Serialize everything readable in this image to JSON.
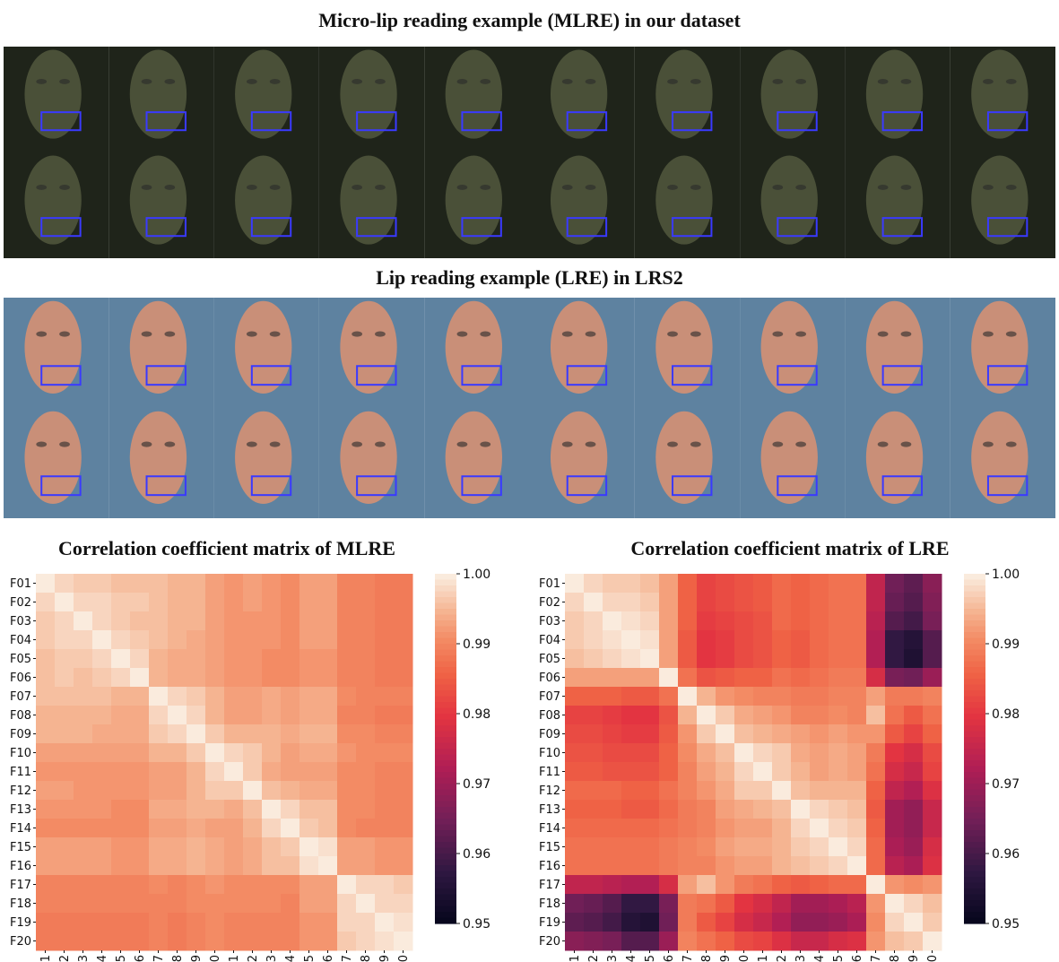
{
  "titles": {
    "mlre": "Micro-lip reading example (MLRE) in our dataset",
    "lre": "Lip reading example (LRE) in LRS2"
  },
  "colors": {
    "mlre_bg": "#1f241a",
    "mlre_face": "#4a5038",
    "lre_bg": "#5e82a0",
    "lre_face": "#c98f78",
    "roi_box": "#3a3aff"
  },
  "icons": {
    "face_frame": "face-frame-icon"
  },
  "frames_per_row": 10,
  "rows_per_example": 2,
  "chart_data": [
    {
      "type": "heatmap",
      "title": "Correlation coefficient matrix of MLRE",
      "labels": [
        "F01",
        "F02",
        "F03",
        "F04",
        "F05",
        "F06",
        "F07",
        "F08",
        "F09",
        "F10",
        "F11",
        "F12",
        "F13",
        "F14",
        "F15",
        "F16",
        "F17",
        "F18",
        "F19",
        "F20"
      ],
      "colorbar": {
        "min": 0.95,
        "max": 1.0,
        "ticks": [
          "0.95",
          "0.96",
          "0.97",
          "0.98",
          "0.99",
          "1.00"
        ]
      },
      "values": [
        [
          1.0,
          0.998,
          0.997,
          0.997,
          0.996,
          0.996,
          0.996,
          0.995,
          0.995,
          0.993,
          0.992,
          0.993,
          0.992,
          0.991,
          0.993,
          0.993,
          0.99,
          0.99,
          0.989,
          0.989
        ],
        [
          0.998,
          1.0,
          0.998,
          0.998,
          0.997,
          0.997,
          0.996,
          0.995,
          0.995,
          0.993,
          0.992,
          0.993,
          0.992,
          0.991,
          0.993,
          0.993,
          0.99,
          0.99,
          0.989,
          0.989
        ],
        [
          0.997,
          0.998,
          1.0,
          0.998,
          0.997,
          0.996,
          0.996,
          0.995,
          0.995,
          0.993,
          0.992,
          0.992,
          0.992,
          0.991,
          0.993,
          0.993,
          0.99,
          0.99,
          0.989,
          0.989
        ],
        [
          0.997,
          0.998,
          0.998,
          1.0,
          0.998,
          0.997,
          0.996,
          0.995,
          0.994,
          0.993,
          0.992,
          0.992,
          0.992,
          0.991,
          0.993,
          0.993,
          0.99,
          0.99,
          0.989,
          0.989
        ],
        [
          0.996,
          0.997,
          0.997,
          0.998,
          1.0,
          0.998,
          0.995,
          0.994,
          0.994,
          0.993,
          0.992,
          0.992,
          0.991,
          0.991,
          0.992,
          0.992,
          0.99,
          0.99,
          0.989,
          0.989
        ],
        [
          0.996,
          0.997,
          0.996,
          0.997,
          0.998,
          1.0,
          0.995,
          0.994,
          0.994,
          0.993,
          0.992,
          0.992,
          0.991,
          0.991,
          0.992,
          0.992,
          0.99,
          0.99,
          0.989,
          0.989
        ],
        [
          0.996,
          0.996,
          0.996,
          0.996,
          0.995,
          0.995,
          1.0,
          0.998,
          0.997,
          0.995,
          0.993,
          0.993,
          0.994,
          0.993,
          0.994,
          0.994,
          0.991,
          0.99,
          0.99,
          0.99
        ],
        [
          0.995,
          0.995,
          0.995,
          0.995,
          0.994,
          0.994,
          0.998,
          1.0,
          0.998,
          0.995,
          0.993,
          0.993,
          0.994,
          0.993,
          0.994,
          0.994,
          0.99,
          0.99,
          0.989,
          0.989
        ],
        [
          0.995,
          0.995,
          0.995,
          0.994,
          0.994,
          0.994,
          0.997,
          0.998,
          1.0,
          0.997,
          0.995,
          0.995,
          0.995,
          0.994,
          0.995,
          0.995,
          0.991,
          0.991,
          0.99,
          0.99
        ],
        [
          0.993,
          0.993,
          0.993,
          0.993,
          0.993,
          0.993,
          0.995,
          0.995,
          0.997,
          1.0,
          0.998,
          0.997,
          0.995,
          0.993,
          0.994,
          0.994,
          0.992,
          0.991,
          0.991,
          0.991
        ],
        [
          0.992,
          0.992,
          0.992,
          0.992,
          0.992,
          0.992,
          0.993,
          0.993,
          0.995,
          0.998,
          1.0,
          0.997,
          0.994,
          0.993,
          0.993,
          0.993,
          0.991,
          0.991,
          0.99,
          0.99
        ],
        [
          0.993,
          0.993,
          0.992,
          0.992,
          0.992,
          0.992,
          0.993,
          0.993,
          0.995,
          0.997,
          0.997,
          1.0,
          0.996,
          0.995,
          0.994,
          0.994,
          0.991,
          0.991,
          0.99,
          0.99
        ],
        [
          0.992,
          0.992,
          0.992,
          0.992,
          0.991,
          0.991,
          0.994,
          0.994,
          0.995,
          0.995,
          0.994,
          0.996,
          1.0,
          0.998,
          0.996,
          0.996,
          0.991,
          0.991,
          0.99,
          0.99
        ],
        [
          0.991,
          0.991,
          0.991,
          0.991,
          0.991,
          0.991,
          0.993,
          0.993,
          0.994,
          0.993,
          0.993,
          0.995,
          0.998,
          1.0,
          0.997,
          0.996,
          0.991,
          0.99,
          0.99,
          0.99
        ],
        [
          0.993,
          0.993,
          0.993,
          0.993,
          0.992,
          0.992,
          0.994,
          0.994,
          0.995,
          0.994,
          0.993,
          0.994,
          0.996,
          0.997,
          1.0,
          0.999,
          0.993,
          0.993,
          0.992,
          0.992
        ],
        [
          0.993,
          0.993,
          0.993,
          0.993,
          0.992,
          0.992,
          0.994,
          0.994,
          0.995,
          0.994,
          0.993,
          0.994,
          0.996,
          0.996,
          0.999,
          1.0,
          0.993,
          0.993,
          0.992,
          0.992
        ],
        [
          0.99,
          0.99,
          0.99,
          0.99,
          0.99,
          0.99,
          0.991,
          0.99,
          0.991,
          0.992,
          0.991,
          0.991,
          0.991,
          0.991,
          0.993,
          0.993,
          1.0,
          0.998,
          0.998,
          0.997
        ],
        [
          0.99,
          0.99,
          0.99,
          0.99,
          0.99,
          0.99,
          0.99,
          0.99,
          0.991,
          0.991,
          0.991,
          0.991,
          0.991,
          0.99,
          0.993,
          0.993,
          0.998,
          1.0,
          0.998,
          0.998
        ],
        [
          0.989,
          0.989,
          0.989,
          0.989,
          0.989,
          0.989,
          0.99,
          0.989,
          0.99,
          0.991,
          0.99,
          0.99,
          0.99,
          0.99,
          0.992,
          0.992,
          0.998,
          0.998,
          1.0,
          0.999
        ],
        [
          0.989,
          0.989,
          0.989,
          0.989,
          0.989,
          0.989,
          0.99,
          0.989,
          0.99,
          0.991,
          0.99,
          0.99,
          0.99,
          0.99,
          0.992,
          0.992,
          0.997,
          0.998,
          0.999,
          1.0
        ]
      ]
    },
    {
      "type": "heatmap",
      "title": "Correlation coefficient matrix of LRE",
      "labels": [
        "F01",
        "F02",
        "F03",
        "F04",
        "F05",
        "F06",
        "F07",
        "F08",
        "F09",
        "F10",
        "F11",
        "F12",
        "F13",
        "F14",
        "F15",
        "F16",
        "F17",
        "F18",
        "F19",
        "F20"
      ],
      "colorbar": {
        "min": 0.95,
        "max": 1.0,
        "ticks": [
          "0.95",
          "0.96",
          "0.97",
          "0.98",
          "0.99",
          "1.00"
        ]
      },
      "values": [
        [
          1.0,
          0.998,
          0.997,
          0.997,
          0.996,
          0.993,
          0.986,
          0.982,
          0.983,
          0.984,
          0.985,
          0.987,
          0.986,
          0.987,
          0.988,
          0.988,
          0.975,
          0.965,
          0.963,
          0.968
        ],
        [
          0.998,
          1.0,
          0.998,
          0.998,
          0.997,
          0.993,
          0.986,
          0.982,
          0.983,
          0.984,
          0.985,
          0.987,
          0.986,
          0.987,
          0.988,
          0.988,
          0.975,
          0.964,
          0.962,
          0.967
        ],
        [
          0.997,
          0.998,
          1.0,
          0.999,
          0.998,
          0.993,
          0.986,
          0.981,
          0.982,
          0.983,
          0.984,
          0.987,
          0.986,
          0.987,
          0.988,
          0.988,
          0.974,
          0.962,
          0.96,
          0.966
        ],
        [
          0.997,
          0.998,
          0.999,
          1.0,
          0.999,
          0.993,
          0.985,
          0.98,
          0.981,
          0.983,
          0.984,
          0.986,
          0.985,
          0.987,
          0.988,
          0.988,
          0.973,
          0.958,
          0.956,
          0.962
        ],
        [
          0.996,
          0.997,
          0.998,
          0.999,
          1.0,
          0.993,
          0.985,
          0.98,
          0.981,
          0.983,
          0.984,
          0.986,
          0.985,
          0.987,
          0.988,
          0.988,
          0.973,
          0.958,
          0.955,
          0.962
        ],
        [
          0.993,
          0.993,
          0.993,
          0.993,
          0.993,
          1.0,
          0.988,
          0.984,
          0.985,
          0.986,
          0.986,
          0.988,
          0.987,
          0.988,
          0.989,
          0.989,
          0.978,
          0.966,
          0.965,
          0.97
        ],
        [
          0.986,
          0.986,
          0.986,
          0.985,
          0.985,
          0.988,
          1.0,
          0.995,
          0.992,
          0.991,
          0.99,
          0.99,
          0.989,
          0.989,
          0.99,
          0.99,
          0.993,
          0.989,
          0.989,
          0.99
        ],
        [
          0.982,
          0.982,
          0.981,
          0.98,
          0.98,
          0.984,
          0.995,
          1.0,
          0.997,
          0.994,
          0.993,
          0.992,
          0.99,
          0.99,
          0.991,
          0.99,
          0.996,
          0.988,
          0.985,
          0.988
        ],
        [
          0.983,
          0.983,
          0.982,
          0.981,
          0.981,
          0.985,
          0.992,
          0.997,
          1.0,
          0.996,
          0.995,
          0.994,
          0.993,
          0.992,
          0.993,
          0.992,
          0.992,
          0.985,
          0.982,
          0.986
        ],
        [
          0.984,
          0.984,
          0.983,
          0.983,
          0.983,
          0.986,
          0.991,
          0.994,
          0.996,
          1.0,
          0.998,
          0.997,
          0.994,
          0.993,
          0.994,
          0.993,
          0.989,
          0.98,
          0.978,
          0.983
        ],
        [
          0.985,
          0.985,
          0.984,
          0.984,
          0.984,
          0.986,
          0.99,
          0.993,
          0.995,
          0.998,
          1.0,
          0.997,
          0.995,
          0.993,
          0.994,
          0.993,
          0.988,
          0.978,
          0.976,
          0.982
        ],
        [
          0.987,
          0.987,
          0.987,
          0.986,
          0.986,
          0.988,
          0.99,
          0.992,
          0.994,
          0.997,
          0.997,
          1.0,
          0.996,
          0.995,
          0.995,
          0.995,
          0.986,
          0.975,
          0.973,
          0.979
        ],
        [
          0.986,
          0.986,
          0.986,
          0.985,
          0.985,
          0.987,
          0.989,
          0.99,
          0.993,
          0.994,
          0.995,
          0.996,
          1.0,
          0.998,
          0.997,
          0.996,
          0.985,
          0.971,
          0.969,
          0.976
        ],
        [
          0.987,
          0.987,
          0.987,
          0.987,
          0.987,
          0.988,
          0.989,
          0.99,
          0.992,
          0.993,
          0.993,
          0.995,
          0.998,
          1.0,
          0.998,
          0.997,
          0.986,
          0.971,
          0.969,
          0.976
        ],
        [
          0.988,
          0.988,
          0.988,
          0.988,
          0.988,
          0.989,
          0.99,
          0.991,
          0.993,
          0.994,
          0.994,
          0.995,
          0.997,
          0.998,
          1.0,
          0.998,
          0.987,
          0.972,
          0.97,
          0.978
        ],
        [
          0.988,
          0.988,
          0.988,
          0.988,
          0.988,
          0.989,
          0.99,
          0.99,
          0.992,
          0.993,
          0.993,
          0.995,
          0.996,
          0.997,
          0.998,
          1.0,
          0.987,
          0.974,
          0.972,
          0.979
        ],
        [
          0.975,
          0.975,
          0.974,
          0.973,
          0.973,
          0.978,
          0.993,
          0.996,
          0.992,
          0.989,
          0.988,
          0.986,
          0.985,
          0.986,
          0.987,
          0.987,
          1.0,
          0.992,
          0.991,
          0.992
        ],
        [
          0.965,
          0.964,
          0.962,
          0.958,
          0.958,
          0.966,
          0.989,
          0.988,
          0.985,
          0.98,
          0.978,
          0.975,
          0.971,
          0.971,
          0.972,
          0.974,
          0.992,
          1.0,
          0.998,
          0.996
        ],
        [
          0.963,
          0.962,
          0.96,
          0.956,
          0.955,
          0.965,
          0.989,
          0.985,
          0.982,
          0.978,
          0.976,
          0.973,
          0.969,
          0.969,
          0.97,
          0.972,
          0.991,
          0.998,
          1.0,
          0.997
        ],
        [
          0.968,
          0.967,
          0.966,
          0.962,
          0.962,
          0.97,
          0.99,
          0.988,
          0.986,
          0.983,
          0.982,
          0.979,
          0.976,
          0.976,
          0.978,
          0.979,
          0.992,
          0.996,
          0.997,
          1.0
        ]
      ]
    }
  ]
}
